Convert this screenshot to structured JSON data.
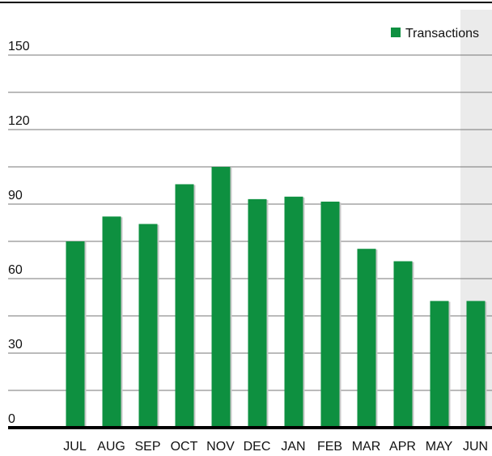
{
  "chart_data": {
    "type": "bar",
    "categories": [
      "JUL",
      "AUG",
      "SEP",
      "OCT",
      "NOV",
      "DEC",
      "JAN",
      "FEB",
      "MAR",
      "APR",
      "MAY",
      "JUN"
    ],
    "series": [
      {
        "name": "Transactions",
        "color": "#0e9040",
        "values": [
          75,
          85,
          82,
          98,
          105,
          92,
          93,
          91,
          72,
          67,
          51,
          51
        ]
      }
    ],
    "ylim": [
      0,
      150
    ],
    "yticks": [
      0,
      30,
      60,
      90,
      120,
      150
    ],
    "minor_yticks": [
      15,
      45,
      75,
      105,
      135
    ],
    "grid": true,
    "legend": "top-right",
    "highlight_index": 11
  }
}
